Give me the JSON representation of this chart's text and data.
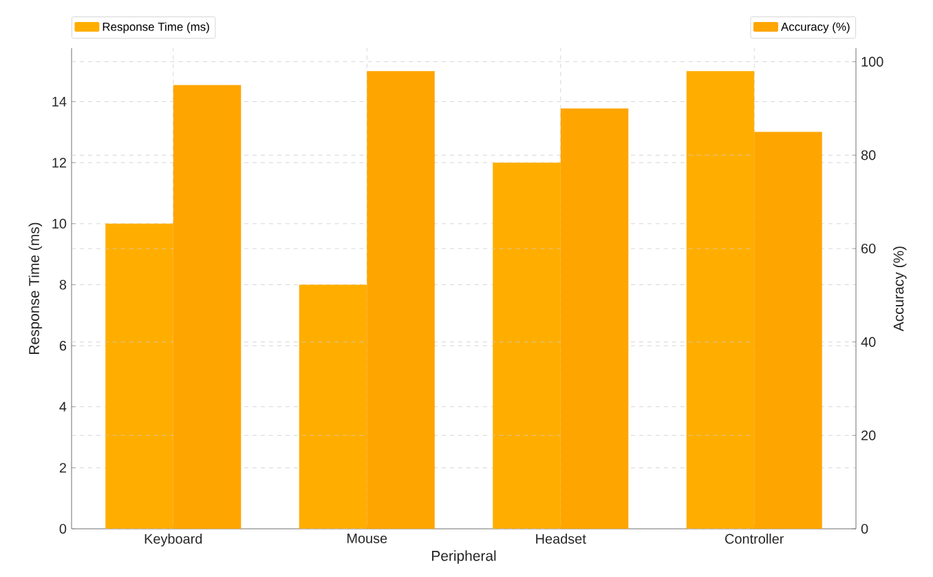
{
  "chart_data": {
    "type": "bar",
    "xlabel": "Peripheral",
    "ylabel": "Response Time (ms)",
    "y2label": "Accuracy (%)",
    "categories": [
      "Keyboard",
      "Mouse",
      "Headset",
      "Controller"
    ],
    "series": [
      {
        "name": "Response Time (ms)",
        "color": "#ffae00",
        "values": [
          10,
          8,
          12,
          15
        ]
      },
      {
        "name": "Accuracy (%)",
        "color": "#ffa500",
        "values": [
          95,
          98,
          90,
          85
        ],
        "axis": "y2"
      }
    ],
    "ylim": [
      0,
      15.75
    ],
    "yticks": [
      0,
      2,
      4,
      6,
      8,
      10,
      12,
      14
    ],
    "y2lim": [
      0,
      102.9
    ],
    "y2ticks": [
      0,
      20,
      40,
      60,
      80,
      100
    ],
    "grid": true,
    "legend": "top"
  }
}
